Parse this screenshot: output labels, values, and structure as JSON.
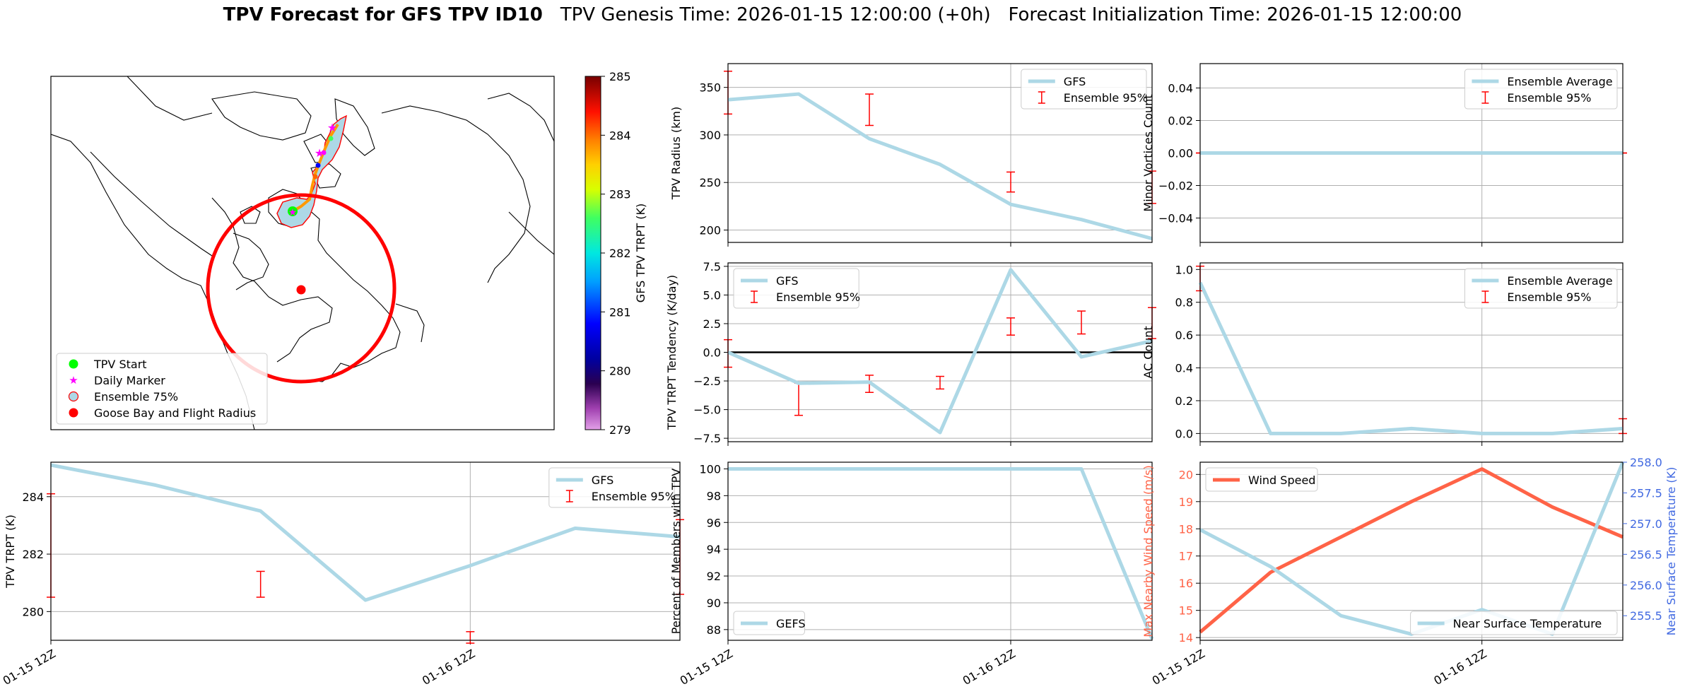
{
  "title": {
    "bold": "TPV Forecast for GFS TPV ID10",
    "genesis": "TPV Genesis Time: 2026-01-15 12:00:00 (+0h)",
    "init": "Forecast Initialization Time: 2026-01-15 12:00:00"
  },
  "colors": {
    "gfs_line": "#add8e6",
    "ensemble_bar": "#ff0000",
    "wind_line": "#ff6347",
    "temp_axis": "#4169e1",
    "zero_line": "#000000",
    "grid": "#b0b0b0"
  },
  "map": {
    "colorbar": {
      "label": "GFS TPV TRPT (K)",
      "ticks": [
        "279",
        "280",
        "281",
        "282",
        "283",
        "284",
        "285"
      ],
      "range": [
        279,
        285
      ]
    },
    "legend": [
      "TPV Start",
      "Daily Marker",
      "Ensemble 75%",
      "Goose Bay and Flight Radius"
    ]
  },
  "chart_data": [
    {
      "id": "trpt",
      "type": "line",
      "ylabel": "TPV TRPT (K)",
      "ylim": [
        279.0,
        285.2
      ],
      "yticks": [
        "280",
        "282",
        "284"
      ],
      "x": [
        "01-15 12Z",
        "01-15 18Z",
        "01-16 00Z",
        "01-16 06Z",
        "01-16 12Z",
        "01-16 18Z",
        "01-17 00Z"
      ],
      "xtick_labels": [
        "01-15 12Z",
        "01-16 12Z"
      ],
      "series": [
        {
          "name": "GFS",
          "values": [
            285.1,
            284.4,
            283.5,
            280.4,
            281.6,
            282.9,
            282.6
          ]
        }
      ],
      "ensemble": {
        "name": "Ensemble 95%",
        "ranges": [
          [
            280.5,
            284.1
          ],
          null,
          [
            280.5,
            281.4
          ],
          null,
          [
            278.9,
            279.3
          ],
          null,
          [
            280.6,
            283.2
          ]
        ]
      },
      "legend_loc": "upper right"
    },
    {
      "id": "radius",
      "type": "line",
      "ylabel": "TPV Radius (km)",
      "ylim": [
        187,
        375
      ],
      "yticks": [
        "200",
        "250",
        "300",
        "350"
      ],
      "series": [
        {
          "name": "GFS",
          "values": [
            337,
            343,
            296,
            269,
            227,
            211,
            191
          ]
        }
      ],
      "ensemble": {
        "name": "Ensemble 95%",
        "ranges": [
          [
            322,
            367
          ],
          null,
          [
            310,
            343
          ],
          null,
          [
            240,
            261
          ],
          null,
          [
            228,
            262
          ]
        ]
      },
      "legend_loc": "upper right"
    },
    {
      "id": "tendency",
      "type": "line",
      "ylabel": "TPV TRPT Tendency (K/day)",
      "ylim": [
        -7.8,
        7.8
      ],
      "yticks": [
        "−7.5",
        "−5.0",
        "−2.5",
        "0.0",
        "2.5",
        "5.0",
        "7.5"
      ],
      "series": [
        {
          "name": "GFS",
          "values": [
            0.0,
            -2.7,
            -2.6,
            -7.0,
            7.2,
            -0.4,
            1.0
          ]
        }
      ],
      "ensemble": {
        "name": "Ensemble 95%",
        "ranges": [
          [
            -1.3,
            1.1
          ],
          [
            -5.5,
            -2.7
          ],
          [
            -3.5,
            -2.0
          ],
          [
            -3.2,
            -2.1
          ],
          [
            1.5,
            3.0
          ],
          [
            1.6,
            3.6
          ],
          [
            1.2,
            3.9
          ]
        ]
      },
      "legend_loc": "upper left"
    },
    {
      "id": "members",
      "type": "line",
      "ylabel": "Percent of Members with TPV",
      "ylim": [
        87.2,
        100.5
      ],
      "yticks": [
        "88",
        "90",
        "92",
        "94",
        "96",
        "98",
        "100"
      ],
      "series": [
        {
          "name": "GEFS",
          "values": [
            100,
            100,
            100,
            100,
            100,
            100,
            87.3
          ]
        }
      ],
      "legend_loc": "lower left"
    },
    {
      "id": "minor",
      "type": "line",
      "ylabel": "Minor Vortices Count",
      "ylim": [
        -0.055,
        0.055
      ],
      "yticks": [
        "−0.04",
        "−0.02",
        "0.00",
        "0.02",
        "0.04"
      ],
      "series": [
        {
          "name": "Ensemble Average",
          "values": [
            0,
            0,
            0,
            0,
            0,
            0,
            0
          ]
        }
      ],
      "ensemble": {
        "name": "Ensemble 95%",
        "ranges": [
          [
            0,
            0
          ],
          null,
          [
            0,
            0
          ],
          null,
          [
            0,
            0
          ],
          null,
          [
            0,
            0
          ]
        ]
      },
      "legend_loc": "upper right"
    },
    {
      "id": "ac",
      "type": "line",
      "ylabel": "AC Count",
      "ylim": [
        -0.05,
        1.04
      ],
      "yticks": [
        "0.0",
        "0.2",
        "0.4",
        "0.6",
        "0.8",
        "1.0"
      ],
      "series": [
        {
          "name": "Ensemble Average",
          "values": [
            0.92,
            0.0,
            0.0,
            0.03,
            0.0,
            0.0,
            0.03
          ]
        }
      ],
      "ensemble": {
        "name": "Ensemble 95%",
        "ranges": [
          [
            0.87,
            1.02
          ],
          null,
          [
            0,
            0
          ],
          null,
          [
            0,
            0
          ],
          null,
          [
            0.0,
            0.09
          ]
        ]
      },
      "legend_loc": "upper right"
    },
    {
      "id": "wind",
      "type": "line",
      "ylabel": "Max Nearby Wind Speed (m/s)",
      "ylabel_right": "Near Surface Temperature (K)",
      "ylim": [
        13.9,
        20.45
      ],
      "ylim_right": [
        255.1,
        258.0
      ],
      "yticks": [
        "14",
        "15",
        "16",
        "17",
        "18",
        "19",
        "20"
      ],
      "yticks_right": [
        "255.5",
        "256.0",
        "256.5",
        "257.0",
        "257.5",
        "258.0"
      ],
      "series": [
        {
          "name": "Wind Speed",
          "values": [
            14.2,
            16.4,
            17.7,
            19.0,
            20.2,
            18.8,
            17.7
          ],
          "axis": "left"
        },
        {
          "name": "Near Surface Temperature",
          "values": [
            256.9,
            256.3,
            255.5,
            255.2,
            255.6,
            255.2,
            258.1
          ],
          "axis": "right"
        }
      ],
      "legend_loc": "upper left / lower right"
    }
  ]
}
